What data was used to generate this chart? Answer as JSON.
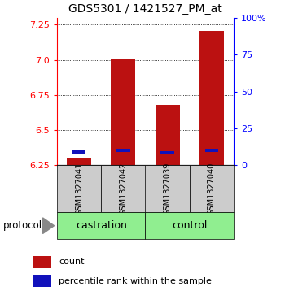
{
  "title": "GDS5301 / 1421527_PM_at",
  "samples": [
    "GSM1327041",
    "GSM1327042",
    "GSM1327039",
    "GSM1327040"
  ],
  "red_values": [
    6.302,
    7.002,
    6.677,
    7.205
  ],
  "blue_values": [
    6.342,
    6.353,
    6.34,
    6.353
  ],
  "ymin": 6.25,
  "ymax": 7.3,
  "yticks_left": [
    6.25,
    6.5,
    6.75,
    7.0,
    7.25
  ],
  "yticks_right_vals": [
    0,
    25,
    50,
    75,
    100
  ],
  "yticks_right_labels": [
    "0",
    "25",
    "50",
    "75",
    "100%"
  ],
  "bar_width": 0.55,
  "red_color": "#bb1111",
  "blue_color": "#1111bb",
  "proto_color": "#90ee90",
  "sample_bg": "#cccccc",
  "legend_red_label": "count",
  "legend_blue_label": "percentile rank within the sample",
  "protocol_label": "protocol"
}
